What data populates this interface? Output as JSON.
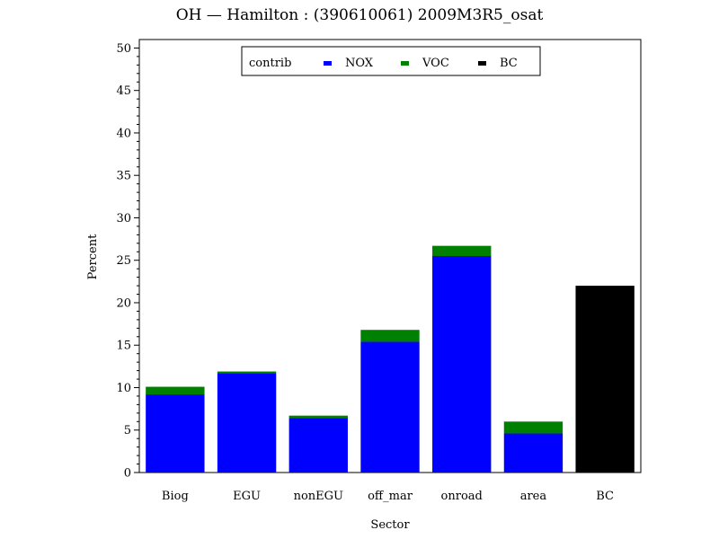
{
  "chart_data": {
    "type": "bar",
    "stacked": true,
    "title": "OH  —  Hamilton : (390610061) 2009M3R5_osat",
    "xlabel": "Sector",
    "ylabel": "Percent",
    "ylim": [
      0,
      51
    ],
    "yticks": [
      0,
      5,
      10,
      15,
      20,
      25,
      30,
      35,
      40,
      45,
      50
    ],
    "categories": [
      "Biog",
      "EGU",
      "nonEGU",
      "off_mar",
      "onroad",
      "area",
      "BC"
    ],
    "legend_title": "contrib",
    "legend_position": "top-center",
    "series": [
      {
        "name": "NOX",
        "color": "#0000ff",
        "values": [
          9.2,
          11.7,
          6.4,
          15.4,
          25.5,
          4.6,
          0
        ]
      },
      {
        "name": "VOC",
        "color": "#008000",
        "values": [
          0.9,
          0.2,
          0.3,
          1.4,
          1.2,
          1.4,
          0
        ]
      },
      {
        "name": "BC",
        "color": "#000000",
        "values": [
          0,
          0,
          0,
          0,
          0,
          0,
          22.0
        ]
      }
    ],
    "grid": false
  }
}
